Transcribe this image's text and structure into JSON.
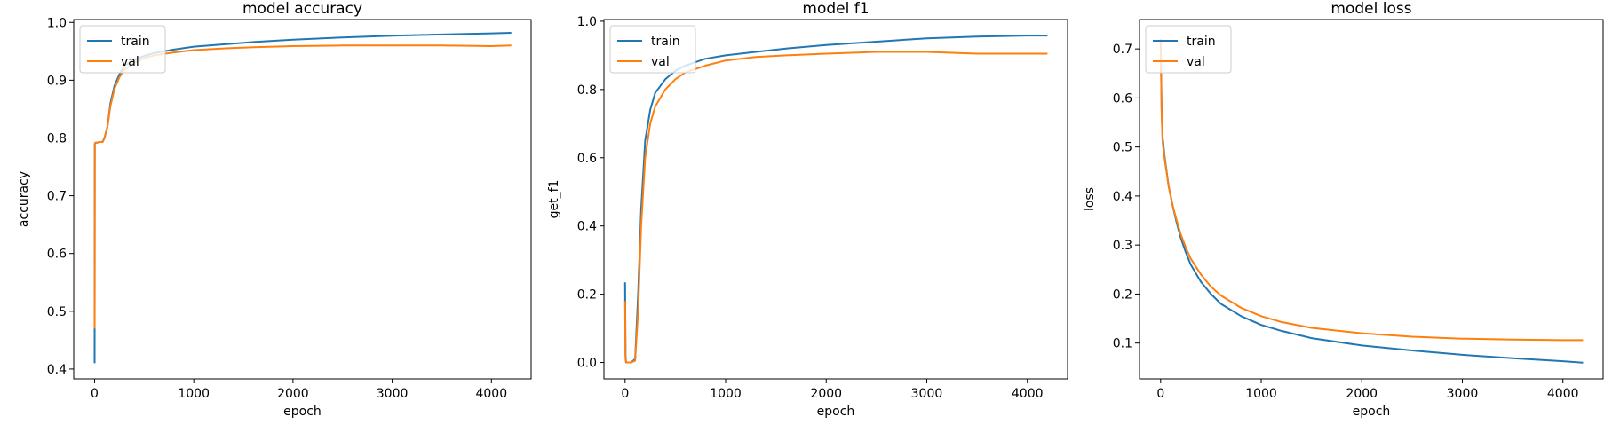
{
  "chart_data": [
    {
      "type": "line",
      "title": "model accuracy",
      "xlabel": "epoch",
      "ylabel": "accuracy",
      "xlim": [
        -210,
        4400
      ],
      "ylim": [
        0.383,
        1.005
      ],
      "xticks": [
        0,
        1000,
        2000,
        3000,
        4000
      ],
      "yticks": [
        0.4,
        0.5,
        0.6,
        0.7,
        0.8,
        0.9,
        1.0
      ],
      "ytick_labels": [
        "0.4",
        "0.5",
        "0.6",
        "0.7",
        "0.8",
        "0.9",
        "1.0"
      ],
      "grid": false,
      "legend": "upper-left",
      "series": [
        {
          "name": "train",
          "color": "#1f77b4",
          "x": [
            0,
            1,
            2,
            8,
            15,
            30,
            50,
            80,
            100,
            130,
            160,
            200,
            250,
            300,
            400,
            500,
            600,
            800,
            1000,
            1300,
            1600,
            2000,
            2500,
            3000,
            3500,
            4000,
            4200
          ],
          "y": [
            0.41,
            0.6,
            0.79,
            0.792,
            0.792,
            0.792,
            0.793,
            0.793,
            0.8,
            0.82,
            0.86,
            0.89,
            0.91,
            0.925,
            0.935,
            0.942,
            0.947,
            0.953,
            0.958,
            0.962,
            0.966,
            0.97,
            0.974,
            0.977,
            0.979,
            0.981,
            0.982
          ]
        },
        {
          "name": "val",
          "color": "#ff7f0e",
          "x": [
            0,
            1,
            2,
            8,
            15,
            30,
            50,
            80,
            100,
            130,
            160,
            200,
            250,
            300,
            400,
            500,
            600,
            800,
            1000,
            1300,
            1600,
            2000,
            2500,
            3000,
            3500,
            4000,
            4200
          ],
          "y": [
            0.47,
            0.62,
            0.79,
            0.792,
            0.792,
            0.792,
            0.793,
            0.793,
            0.8,
            0.82,
            0.855,
            0.885,
            0.905,
            0.918,
            0.93,
            0.938,
            0.943,
            0.948,
            0.952,
            0.955,
            0.957,
            0.959,
            0.96,
            0.96,
            0.96,
            0.959,
            0.96
          ]
        }
      ]
    },
    {
      "type": "line",
      "title": "model f1",
      "xlabel": "epoch",
      "ylabel": "get_f1",
      "xlim": [
        -210,
        4400
      ],
      "ylim": [
        -0.048,
        1.005
      ],
      "xticks": [
        0,
        1000,
        2000,
        3000,
        4000
      ],
      "yticks": [
        0.0,
        0.2,
        0.4,
        0.6,
        0.8,
        1.0
      ],
      "ytick_labels": [
        "0.0",
        "0.2",
        "0.4",
        "0.6",
        "0.8",
        "1.0"
      ],
      "grid": false,
      "legend": "upper-left",
      "series": [
        {
          "name": "train",
          "color": "#1f77b4",
          "x": [
            0,
            5,
            10,
            30,
            60,
            100,
            130,
            160,
            200,
            250,
            300,
            400,
            500,
            600,
            800,
            1000,
            1300,
            1600,
            2000,
            2500,
            3000,
            3500,
            4000,
            4200
          ],
          "y": [
            0.235,
            0.02,
            0.0,
            0.0,
            0.0,
            0.01,
            0.2,
            0.45,
            0.65,
            0.74,
            0.79,
            0.83,
            0.855,
            0.87,
            0.89,
            0.9,
            0.91,
            0.92,
            0.93,
            0.94,
            0.95,
            0.955,
            0.958,
            0.958
          ]
        },
        {
          "name": "val",
          "color": "#ff7f0e",
          "x": [
            0,
            5,
            10,
            30,
            60,
            100,
            130,
            160,
            200,
            250,
            300,
            400,
            500,
            600,
            800,
            1000,
            1300,
            1600,
            2000,
            2500,
            3000,
            3500,
            4000,
            4200
          ],
          "y": [
            0.18,
            0.01,
            0.0,
            0.0,
            0.0,
            0.005,
            0.15,
            0.4,
            0.6,
            0.7,
            0.75,
            0.8,
            0.83,
            0.85,
            0.87,
            0.885,
            0.895,
            0.9,
            0.905,
            0.91,
            0.91,
            0.905,
            0.905,
            0.905
          ]
        }
      ]
    },
    {
      "type": "line",
      "title": "model loss",
      "xlabel": "epoch",
      "ylabel": "loss",
      "xlim": [
        -210,
        4400
      ],
      "ylim": [
        0.027,
        0.76
      ],
      "xticks": [
        0,
        1000,
        2000,
        3000,
        4000
      ],
      "yticks": [
        0.1,
        0.2,
        0.3,
        0.4,
        0.5,
        0.6,
        0.7
      ],
      "ytick_labels": [
        "0.1",
        "0.2",
        "0.3",
        "0.4",
        "0.5",
        "0.6",
        "0.7"
      ],
      "grid": false,
      "legend": "upper-left",
      "series": [
        {
          "name": "train",
          "color": "#1f77b4",
          "x": [
            0,
            10,
            20,
            40,
            80,
            120,
            160,
            200,
            250,
            300,
            400,
            500,
            600,
            800,
            1000,
            1200,
            1500,
            2000,
            2500,
            3000,
            3500,
            4000,
            4200
          ],
          "y": [
            0.72,
            0.58,
            0.52,
            0.48,
            0.42,
            0.38,
            0.345,
            0.315,
            0.285,
            0.26,
            0.225,
            0.2,
            0.18,
            0.155,
            0.137,
            0.125,
            0.11,
            0.095,
            0.085,
            0.076,
            0.069,
            0.063,
            0.06
          ]
        },
        {
          "name": "val",
          "color": "#ff7f0e",
          "x": [
            0,
            10,
            20,
            40,
            80,
            120,
            160,
            200,
            250,
            300,
            400,
            500,
            600,
            800,
            1000,
            1200,
            1500,
            2000,
            2500,
            3000,
            3500,
            4000,
            4200
          ],
          "y": [
            0.72,
            0.57,
            0.51,
            0.475,
            0.42,
            0.38,
            0.35,
            0.322,
            0.295,
            0.272,
            0.24,
            0.215,
            0.197,
            0.172,
            0.155,
            0.143,
            0.131,
            0.12,
            0.113,
            0.109,
            0.107,
            0.106,
            0.106
          ]
        }
      ]
    }
  ]
}
